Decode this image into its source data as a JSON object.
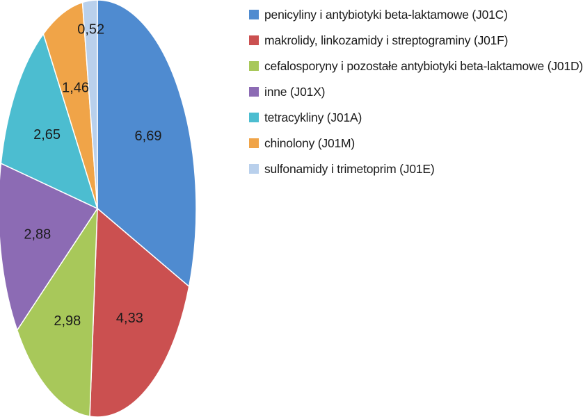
{
  "chart_data": {
    "type": "pie",
    "decimal_separator": ",",
    "start_angle_deg": 90,
    "direction": "clockwise",
    "legend_position": "right",
    "slices": [
      {
        "label": "penicyliny i antybiotyki beta-laktamowe (J01C)",
        "value": 6.69,
        "value_text": "6,69",
        "color": "#4f8bd0"
      },
      {
        "label": "makrolidy, linkozamidy i streptograminy (J01F)",
        "value": 4.33,
        "value_text": "4,33",
        "color": "#cb5050"
      },
      {
        "label": "cefalosporyny i pozostałe antybiotyki beta-laktamowe (J01D)",
        "value": 2.98,
        "value_text": "2,98",
        "color": "#a8c85a"
      },
      {
        "label": "inne (J01X)",
        "value": 2.88,
        "value_text": "2,88",
        "color": "#8c6bb4"
      },
      {
        "label": "tetracykliny (J01A)",
        "value": 2.65,
        "value_text": "2,65",
        "color": "#4cbdd0"
      },
      {
        "label": "chinolony (J01M)",
        "value": 1.46,
        "value_text": "1,46",
        "color": "#f0a448"
      },
      {
        "label": "sulfonamidy i trimetoprim (J01E)",
        "value": 0.52,
        "value_text": "0,52",
        "color": "#b9d0ec"
      }
    ],
    "legend_order": [
      0,
      1,
      2,
      3,
      4,
      5,
      6
    ]
  }
}
